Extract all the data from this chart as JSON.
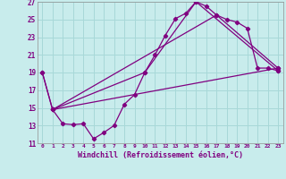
{
  "xlabel": "Windchill (Refroidissement éolien,°C)",
  "background_color": "#c8ecec",
  "grid_color": "#a8d8d8",
  "line_color": "#800080",
  "ylim": [
    11,
    27
  ],
  "xlim": [
    -0.5,
    23.5
  ],
  "yticks": [
    11,
    13,
    15,
    17,
    19,
    21,
    23,
    25,
    27
  ],
  "xticks": [
    0,
    1,
    2,
    3,
    4,
    5,
    6,
    7,
    8,
    9,
    10,
    11,
    12,
    13,
    14,
    15,
    16,
    17,
    18,
    19,
    20,
    21,
    22,
    23
  ],
  "line1_x": [
    0,
    1,
    2,
    3,
    4,
    5,
    6,
    7,
    8,
    9,
    10,
    11,
    12,
    13,
    14,
    15,
    16,
    17,
    18,
    19,
    20,
    21,
    22,
    23
  ],
  "line1_y": [
    19.0,
    14.8,
    13.2,
    13.1,
    13.2,
    11.5,
    12.2,
    13.0,
    15.4,
    16.5,
    19.0,
    21.0,
    23.2,
    25.1,
    25.7,
    27.0,
    26.5,
    25.5,
    25.0,
    24.7,
    24.0,
    19.5,
    19.5,
    19.2
  ],
  "line2_x": [
    1,
    23
  ],
  "line2_y": [
    14.8,
    19.5
  ],
  "line3_x": [
    1,
    17,
    23
  ],
  "line3_y": [
    14.8,
    25.5,
    19.5
  ],
  "line4_x": [
    0,
    1,
    10,
    15,
    23
  ],
  "line4_y": [
    19.0,
    14.8,
    19.0,
    27.0,
    19.2
  ]
}
